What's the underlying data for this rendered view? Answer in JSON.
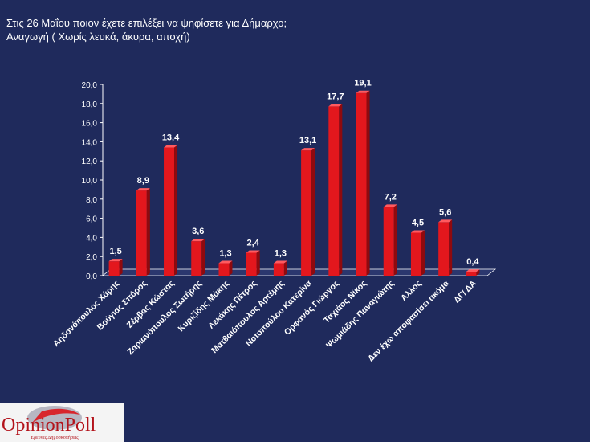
{
  "header": {
    "title": "Στις 26 Μαΐου ποιον έχετε επιλέξει να ψηφίσετε για Δήμαρχο;",
    "subtitle_main": "Αναγωγή",
    "subtitle_note": " ( Χωρίς λευκά, άκυρα, αποχή)"
  },
  "logo": {
    "text": "OpinionPoll",
    "tagline": "Έρευνες Δημοσκοπήσεις"
  },
  "chart_data": {
    "type": "bar",
    "title": "Στις 26 Μαΐου ποιον έχετε επιλέξει να ψηφίσετε για Δήμαρχο;",
    "subtitle": "Αναγωγή ( Χωρίς λευκά, άκυρα, αποχή)",
    "categories": [
      "Αηδονόπουλος Χάρης",
      "Βούγιας Σπύρος",
      "Ζέρβας Κώστας",
      "Ζαριανόπουλος Σωτήρης",
      "Κυριζίδης Μάκης",
      "Λεκάκης Πέτρος",
      "Ματθαιόπουλος Αρτέμης",
      "Νοτοπούλου Κατερίνα",
      "Ορφανός Γιώργος",
      "Ταχιάος Νίκος",
      "Ψωμιάδης Παναγιώτης",
      "Άλλος",
      "Δεν έχω αποφασίσει ακόμα",
      "ΔΓ/ ΔΑ"
    ],
    "values": [
      1.5,
      8.9,
      13.4,
      3.6,
      1.3,
      2.4,
      1.3,
      13.1,
      17.7,
      19.1,
      7.2,
      4.5,
      5.6,
      0.4
    ],
    "value_labels": [
      "1,5",
      "8,9",
      "13,4",
      "3,6",
      "1,3",
      "2,4",
      "1,3",
      "13,1",
      "17,7",
      "19,1",
      "7,2",
      "4,5",
      "5,6",
      "0,4"
    ],
    "ylim": [
      0,
      20
    ],
    "yticks": [
      "0,0",
      "2,0",
      "4,0",
      "6,0",
      "8,0",
      "10,0",
      "12,0",
      "14,0",
      "16,0",
      "18,0",
      "20,0"
    ],
    "xlabel": "",
    "ylabel": "",
    "grid": false,
    "colors": {
      "bar": "#e3171d",
      "bar_side": "#8f0a0e",
      "bar_top": "#ff5a5f",
      "background": "#1f2a5c",
      "text": "#ffffff"
    }
  }
}
